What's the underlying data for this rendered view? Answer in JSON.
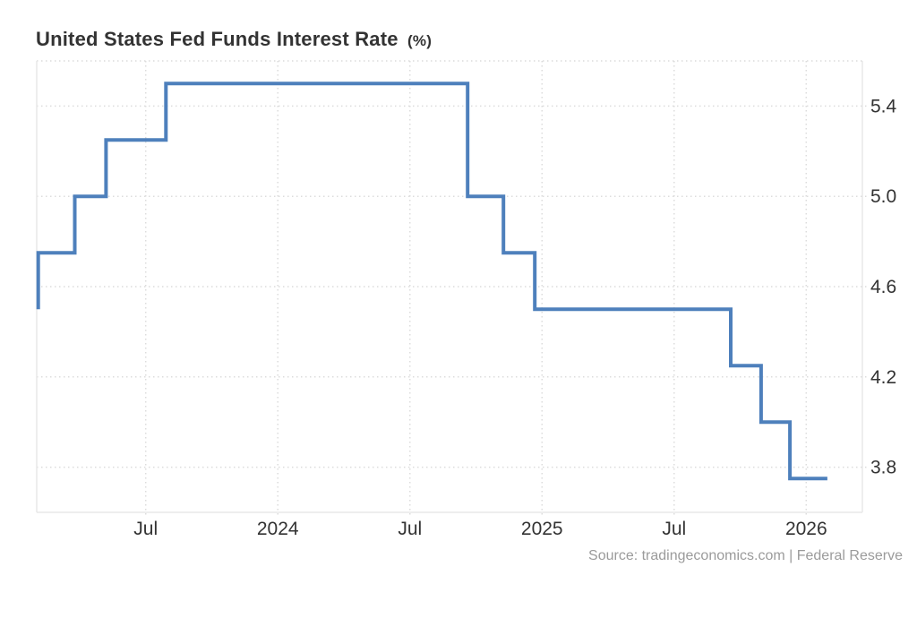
{
  "header": {
    "title": "United States Fed Funds Interest Rate",
    "title_unit": "(%)"
  },
  "footer": {
    "source": "Source: tradingeconomics.com | Federal Reserve"
  },
  "chart_data": {
    "type": "line",
    "step": true,
    "title": "United States Fed Funds Interest Rate (%)",
    "legend_position": "none",
    "grid": {
      "horizontal": true,
      "vertical": true,
      "style": "dotted"
    },
    "x_axis": {
      "unit": "months since Jan 2023 (time axis)",
      "min": 1.05,
      "max": 38.55,
      "ticks": [
        {
          "pos": 6,
          "label": "Jul"
        },
        {
          "pos": 12,
          "label": "2024"
        },
        {
          "pos": 18,
          "label": "Jul"
        },
        {
          "pos": 24,
          "label": "2025"
        },
        {
          "pos": 30,
          "label": "Jul"
        },
        {
          "pos": 36,
          "label": "2026"
        }
      ]
    },
    "y_axis": {
      "side": "right",
      "min": 3.6,
      "max": 5.6,
      "ticks": [
        {
          "pos": 5.4,
          "label": "5.4"
        },
        {
          "pos": 5.0,
          "label": "5.0"
        },
        {
          "pos": 4.6,
          "label": "4.6"
        },
        {
          "pos": 4.2,
          "label": "4.2"
        },
        {
          "pos": 3.8,
          "label": "3.8"
        }
      ]
    },
    "series": [
      {
        "name": "Fed Funds Interest Rate (%)",
        "color": "#4e80bc",
        "points": [
          [
            1.12,
            4.5
          ],
          [
            1.12,
            4.75
          ],
          [
            2.78,
            5.0
          ],
          [
            4.2,
            5.25
          ],
          [
            6.92,
            5.5
          ],
          [
            20.62,
            5.0
          ],
          [
            22.25,
            4.75
          ],
          [
            23.67,
            4.5
          ],
          [
            32.57,
            4.25
          ],
          [
            33.95,
            4.0
          ],
          [
            35.26,
            3.75
          ],
          [
            36.96,
            3.75
          ]
        ]
      }
    ]
  },
  "style": {
    "line_color": "#4e80bc",
    "grid_color": "#dcdcdc",
    "border_color": "#e8e8e8",
    "label_color": "#333333",
    "title_color": "#333333",
    "source_color": "#9b9b9b",
    "background": "#ffffff"
  }
}
